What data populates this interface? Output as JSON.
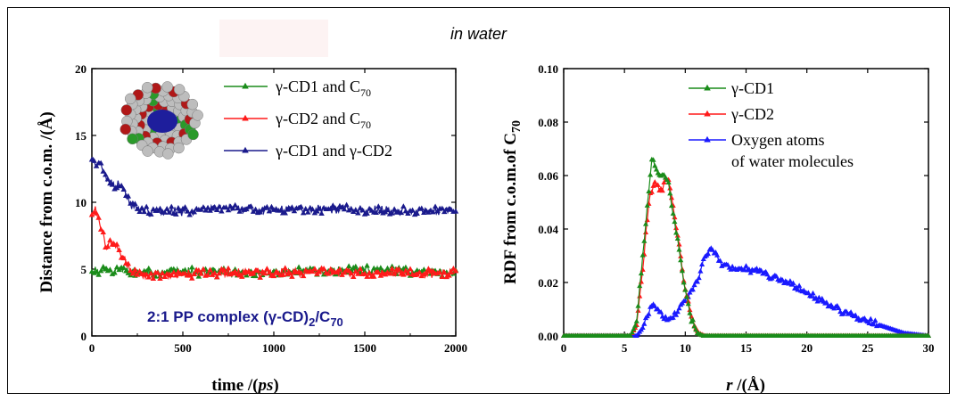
{
  "header": {
    "title": "in water"
  },
  "chart_data": [
    {
      "type": "line",
      "xlabel_main": "time /(",
      "xlabel_unit": "ps",
      "xlabel_close": ")",
      "ylabel": "Distance from c.o.m. /(Å)",
      "xlim": [
        0,
        2000
      ],
      "ylim": [
        0,
        20
      ],
      "xticks": [
        0,
        500,
        1000,
        1500,
        2000
      ],
      "yticks": [
        0,
        5,
        10,
        15,
        20
      ],
      "annotation": {
        "main": "2:1 PP complex (γ-CD)",
        "sub1": "2",
        "mid": "/C",
        "sub2": "70"
      },
      "legend_position": "top-right",
      "series": [
        {
          "name": "γ-CD1 and  C",
          "name_sub": "70",
          "color": "#1a8c1a",
          "x": [
            0,
            50,
            100,
            150,
            200,
            300,
            500,
            750,
            1000,
            1250,
            1500,
            1750,
            2000
          ],
          "y": [
            4.8,
            4.9,
            4.8,
            4.9,
            4.8,
            4.7,
            4.8,
            4.7,
            4.8,
            4.8,
            4.9,
            4.8,
            4.7
          ]
        },
        {
          "name": "γ-CD2 and  C",
          "name_sub": "70",
          "color": "#ff1a1a",
          "x": [
            0,
            20,
            50,
            75,
            100,
            150,
            200,
            220,
            300,
            500,
            750,
            1000,
            1250,
            1500,
            1750,
            2000
          ],
          "y": [
            8.8,
            9.5,
            8.0,
            6.8,
            6.9,
            6.4,
            5.2,
            4.7,
            4.6,
            4.6,
            4.7,
            4.7,
            4.8,
            4.7,
            4.7,
            4.7
          ]
        },
        {
          "name": "γ-CD1 and   γ-CD2",
          "color": "#1a1a8c",
          "x": [
            0,
            30,
            60,
            90,
            120,
            150,
            180,
            200,
            230,
            300,
            500,
            750,
            1000,
            1250,
            1500,
            1750,
            2000
          ],
          "y": [
            13.0,
            12.9,
            12.6,
            11.6,
            11.2,
            11.3,
            10.9,
            10.1,
            9.6,
            9.3,
            9.3,
            9.6,
            9.4,
            9.5,
            9.4,
            9.4,
            9.3
          ]
        }
      ]
    },
    {
      "type": "line",
      "xlabel_var": "r",
      "xlabel_rest": " /(Å)",
      "ylabel": "RDF from c.o.m.of C",
      "ylabel_sub": "70",
      "xlim": [
        0,
        30
      ],
      "ylim": [
        0,
        0.1
      ],
      "xticks": [
        0,
        5,
        10,
        15,
        20,
        25,
        30
      ],
      "yticks": [
        "0.00",
        "0.02",
        "0.04",
        "0.06",
        "0.08",
        "0.10"
      ],
      "legend_position": "top-right",
      "series": [
        {
          "name": "γ-CD1",
          "color": "#1a8c1a",
          "x": [
            0,
            5.5,
            6.0,
            6.5,
            7.0,
            7.3,
            7.7,
            8.0,
            8.3,
            8.6,
            9.0,
            9.5,
            10.0,
            10.5,
            11.0,
            11.5,
            12.0,
            30
          ],
          "y": [
            0,
            0,
            0.005,
            0.03,
            0.055,
            0.068,
            0.061,
            0.06,
            0.06,
            0.057,
            0.045,
            0.032,
            0.017,
            0.006,
            0.001,
            0,
            0,
            0
          ]
        },
        {
          "name": "γ-CD2",
          "color": "#ff1a1a",
          "x": [
            0,
            5.5,
            6.0,
            6.5,
            7.0,
            7.4,
            7.8,
            8.1,
            8.4,
            8.7,
            9.1,
            9.6,
            10.1,
            10.6,
            11.1,
            11.6,
            12.0,
            30
          ],
          "y": [
            0,
            0,
            0.004,
            0.025,
            0.05,
            0.057,
            0.056,
            0.054,
            0.059,
            0.057,
            0.045,
            0.03,
            0.015,
            0.005,
            0.001,
            0,
            0,
            0
          ]
        },
        {
          "name": "Oxygen atoms",
          "name_line2": "of water molecules",
          "color": "#1a1aff",
          "x": [
            0,
            6.0,
            6.5,
            7.0,
            7.3,
            7.6,
            8.0,
            8.5,
            9.0,
            9.5,
            10.0,
            10.5,
            11.0,
            11.5,
            12.0,
            12.5,
            13.0,
            14.0,
            15.0,
            16.0,
            17.0,
            18.0,
            20.0,
            22.0,
            24.0,
            26.0,
            28.0,
            29.0,
            30.0
          ],
          "y": [
            0,
            0,
            0.003,
            0.008,
            0.012,
            0.011,
            0.008,
            0.006,
            0.007,
            0.01,
            0.014,
            0.017,
            0.021,
            0.028,
            0.033,
            0.031,
            0.027,
            0.025,
            0.025,
            0.024,
            0.022,
            0.021,
            0.016,
            0.011,
            0.007,
            0.004,
            0.001,
            0.0005,
            0
          ]
        }
      ]
    }
  ]
}
